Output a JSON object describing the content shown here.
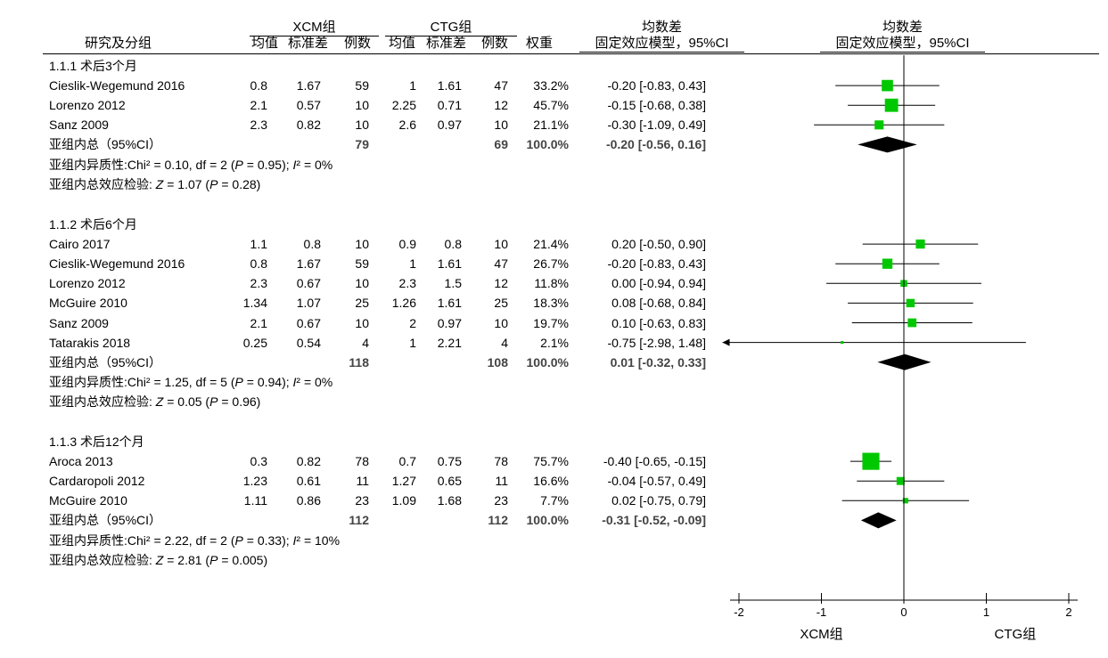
{
  "header": {
    "group1": "XCM组",
    "group2": "CTG组",
    "study_col": "研究及分组",
    "mean": "均值",
    "sd": "标准差",
    "n": "例数",
    "weight": "权重",
    "effect_title": "均数差",
    "effect_sub": "固定效应模型，95%CI",
    "plot_title": "均数差",
    "plot_sub": "固定效应模型，95%CI"
  },
  "chart_data": {
    "type": "forest",
    "axis": {
      "min": -2,
      "max": 2,
      "ticks": [
        "-2",
        "-1",
        "0",
        "1",
        "2"
      ]
    },
    "favours_left": "XCM组",
    "favours_right": "CTG组",
    "subgroups": [
      {
        "title": "1.1.1 术后3个月",
        "studies": [
          {
            "name": "Cieslik-Wegemund 2016",
            "m1": "0.8",
            "sd1": "1.67",
            "n1": "59",
            "m2": "1",
            "sd2": "1.61",
            "n2": "47",
            "weight": "33.2%",
            "ci_text": "-0.20 [-0.83, 0.43]",
            "est": -0.2,
            "lo": -0.83,
            "hi": 0.43,
            "w": 33.2
          },
          {
            "name": "Lorenzo 2012",
            "m1": "2.1",
            "sd1": "0.57",
            "n1": "10",
            "m2": "2.25",
            "sd2": "0.71",
            "n2": "12",
            "weight": "45.7%",
            "ci_text": "-0.15 [-0.68, 0.38]",
            "est": -0.15,
            "lo": -0.68,
            "hi": 0.38,
            "w": 45.7
          },
          {
            "name": "Sanz 2009",
            "m1": "2.3",
            "sd1": "0.82",
            "n1": "10",
            "m2": "2.6",
            "sd2": "0.97",
            "n2": "10",
            "weight": "21.1%",
            "ci_text": "-0.30 [-1.09, 0.49]",
            "est": -0.3,
            "lo": -1.09,
            "hi": 0.49,
            "w": 21.1
          }
        ],
        "total": {
          "label": "亚组内总（95%CI）",
          "n1": "79",
          "n2": "69",
          "weight": "100.0%",
          "ci_text": "-0.20 [-0.56, 0.16]",
          "est": -0.2,
          "lo": -0.56,
          "hi": 0.16
        },
        "het_prefix": "亚组内异质性:Chi² = 0.10, df = 2 (",
        "het_p": "P",
        "het_mid": " = 0.95); ",
        "het_i": "I",
        "het_suffix": "² = 0%",
        "test_prefix": "亚组内总效应检验: ",
        "test_z": "Z",
        "test_mid": " = 1.07 (",
        "test_p": "P",
        "test_suffix": " = 0.28)"
      },
      {
        "title": "1.1.2 术后6个月",
        "studies": [
          {
            "name": "Cairo 2017",
            "m1": "1.1",
            "sd1": "0.8",
            "n1": "10",
            "m2": "0.9",
            "sd2": "0.8",
            "n2": "10",
            "weight": "21.4%",
            "ci_text": "0.20 [-0.50, 0.90]",
            "est": 0.2,
            "lo": -0.5,
            "hi": 0.9,
            "w": 21.4
          },
          {
            "name": "Cieslik-Wegemund 2016",
            "m1": "0.8",
            "sd1": "1.67",
            "n1": "59",
            "m2": "1",
            "sd2": "1.61",
            "n2": "47",
            "weight": "26.7%",
            "ci_text": "-0.20 [-0.83, 0.43]",
            "est": -0.2,
            "lo": -0.83,
            "hi": 0.43,
            "w": 26.7
          },
          {
            "name": "Lorenzo 2012",
            "m1": "2.3",
            "sd1": "0.67",
            "n1": "10",
            "m2": "2.3",
            "sd2": "1.5",
            "n2": "12",
            "weight": "11.8%",
            "ci_text": "0.00 [-0.94, 0.94]",
            "est": 0.0,
            "lo": -0.94,
            "hi": 0.94,
            "w": 11.8
          },
          {
            "name": "McGuire 2010",
            "m1": "1.34",
            "sd1": "1.07",
            "n1": "25",
            "m2": "1.26",
            "sd2": "1.61",
            "n2": "25",
            "weight": "18.3%",
            "ci_text": "0.08 [-0.68, 0.84]",
            "est": 0.08,
            "lo": -0.68,
            "hi": 0.84,
            "w": 18.3
          },
          {
            "name": "Sanz 2009",
            "m1": "2.1",
            "sd1": "0.67",
            "n1": "10",
            "m2": "2",
            "sd2": "0.97",
            "n2": "10",
            "weight": "19.7%",
            "ci_text": "0.10 [-0.63, 0.83]",
            "est": 0.1,
            "lo": -0.63,
            "hi": 0.83,
            "w": 19.7
          },
          {
            "name": "Tatarakis 2018",
            "m1": "0.25",
            "sd1": "0.54",
            "n1": "4",
            "m2": "1",
            "sd2": "2.21",
            "n2": "4",
            "weight": "2.1%",
            "ci_text": "-0.75 [-2.98, 1.48]",
            "est": -0.75,
            "lo": -2.98,
            "hi": 1.48,
            "w": 2.1
          }
        ],
        "total": {
          "label": "亚组内总（95%CI）",
          "n1": "118",
          "n2": "108",
          "weight": "100.0%",
          "ci_text": "0.01 [-0.32, 0.33]",
          "est": 0.01,
          "lo": -0.32,
          "hi": 0.33
        },
        "het_prefix": "亚组内异质性:Chi² = 1.25, df = 5 (",
        "het_p": "P",
        "het_mid": " = 0.94); ",
        "het_i": "I",
        "het_suffix": "² = 0%",
        "test_prefix": "亚组内总效应检验: ",
        "test_z": "Z",
        "test_mid": " = 0.05 (",
        "test_p": "P",
        "test_suffix": " = 0.96)"
      },
      {
        "title": "1.1.3 术后12个月",
        "studies": [
          {
            "name": "Aroca 2013",
            "m1": "0.3",
            "sd1": "0.82",
            "n1": "78",
            "m2": "0.7",
            "sd2": "0.75",
            "n2": "78",
            "weight": "75.7%",
            "ci_text": "-0.40 [-0.65, -0.15]",
            "est": -0.4,
            "lo": -0.65,
            "hi": -0.15,
            "w": 75.7
          },
          {
            "name": "Cardaropoli 2012",
            "m1": "1.23",
            "sd1": "0.61",
            "n1": "11",
            "m2": "1.27",
            "sd2": "0.65",
            "n2": "11",
            "weight": "16.6%",
            "ci_text": "-0.04 [-0.57, 0.49]",
            "est": -0.04,
            "lo": -0.57,
            "hi": 0.49,
            "w": 16.6
          },
          {
            "name": "McGuire 2010",
            "m1": "1.11",
            "sd1": "0.86",
            "n1": "23",
            "m2": "1.09",
            "sd2": "1.68",
            "n2": "23",
            "weight": "7.7%",
            "ci_text": "0.02 [-0.75, 0.79]",
            "est": 0.02,
            "lo": -0.75,
            "hi": 0.79,
            "w": 7.7
          }
        ],
        "total": {
          "label": "亚组内总（95%CI）",
          "n1": "112",
          "n2": "112",
          "weight": "100.0%",
          "ci_text": "-0.31 [-0.52, -0.09]",
          "est": -0.31,
          "lo": -0.52,
          "hi": -0.09
        },
        "het_prefix": "亚组内异质性:Chi² = 2.22, df = 2 (",
        "het_p": "P",
        "het_mid": " = 0.33); ",
        "het_i": "I",
        "het_suffix": "² = 10%",
        "test_prefix": "亚组内总效应检验: ",
        "test_z": "Z",
        "test_mid": " = 2.81 (",
        "test_p": "P",
        "test_suffix": " = 0.005)"
      }
    ],
    "colors": {
      "square": "#00c800",
      "diamond": "#000000",
      "summary_text": "#444444"
    }
  }
}
